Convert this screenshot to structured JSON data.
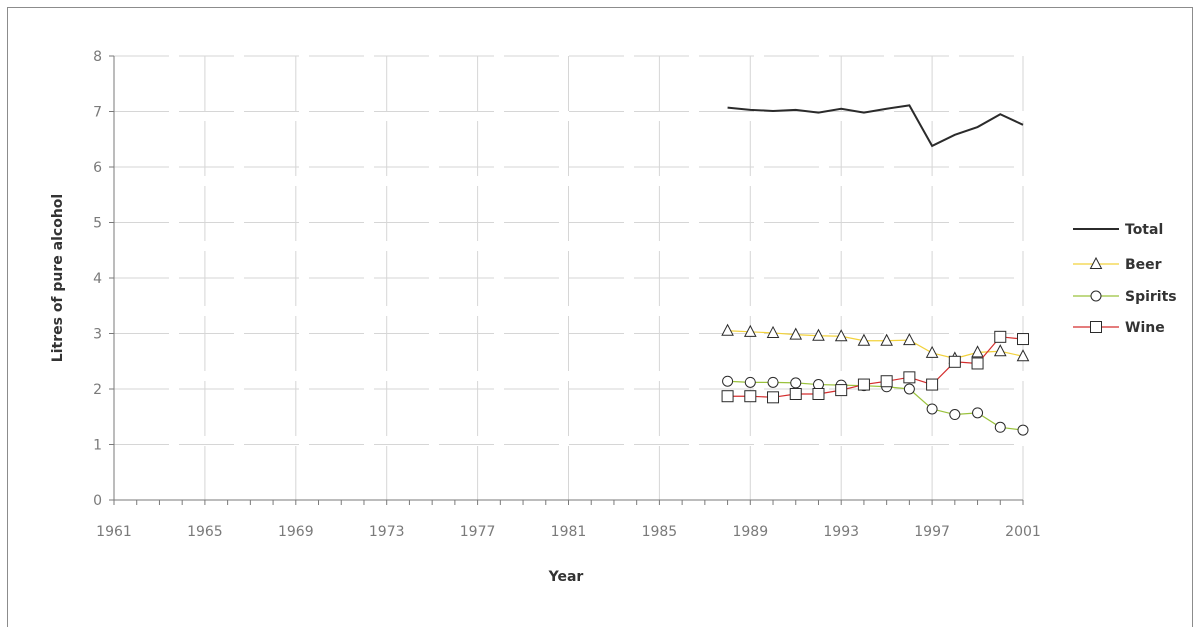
{
  "chart_data": {
    "type": "line",
    "xlabel": "Year",
    "ylabel": "Litres of pure alcohol",
    "xlim": [
      1961,
      2001
    ],
    "ylim": [
      0,
      8
    ],
    "x_ticks": [
      "1961",
      "1965",
      "1969",
      "1973",
      "1977",
      "1981",
      "1985",
      "1989",
      "1993",
      "1997",
      "2001"
    ],
    "y_ticks": [
      "0",
      "1",
      "2",
      "3",
      "4",
      "5",
      "6",
      "7",
      "8"
    ],
    "grid": true,
    "legend_position": "right",
    "x": [
      1988,
      1989,
      1990,
      1991,
      1992,
      1993,
      1994,
      1995,
      1996,
      1997,
      1998,
      1999,
      2000,
      2001
    ],
    "series": [
      {
        "name": "Total",
        "color": "#2b2b2b",
        "marker": "none",
        "values": [
          7.07,
          7.03,
          7.01,
          7.03,
          6.98,
          7.05,
          6.98,
          7.05,
          7.11,
          6.38,
          6.58,
          6.72,
          6.95,
          6.76
        ]
      },
      {
        "name": "Beer",
        "color": "#f2d23c",
        "marker": "triangle",
        "values": [
          3.05,
          3.03,
          3.01,
          2.98,
          2.96,
          2.95,
          2.87,
          2.87,
          2.88,
          2.65,
          2.55,
          2.66,
          2.68,
          2.59
        ]
      },
      {
        "name": "Spirits",
        "color": "#9ac23c",
        "marker": "circle",
        "values": [
          2.14,
          2.12,
          2.12,
          2.11,
          2.08,
          2.07,
          2.06,
          2.04,
          2.0,
          1.64,
          1.54,
          1.57,
          1.31,
          1.26
        ]
      },
      {
        "name": "Wine",
        "color": "#d42e2e",
        "marker": "square",
        "values": [
          1.87,
          1.87,
          1.85,
          1.91,
          1.91,
          1.98,
          2.08,
          2.14,
          2.21,
          2.08,
          2.49,
          2.46,
          2.94,
          2.9
        ]
      }
    ]
  }
}
